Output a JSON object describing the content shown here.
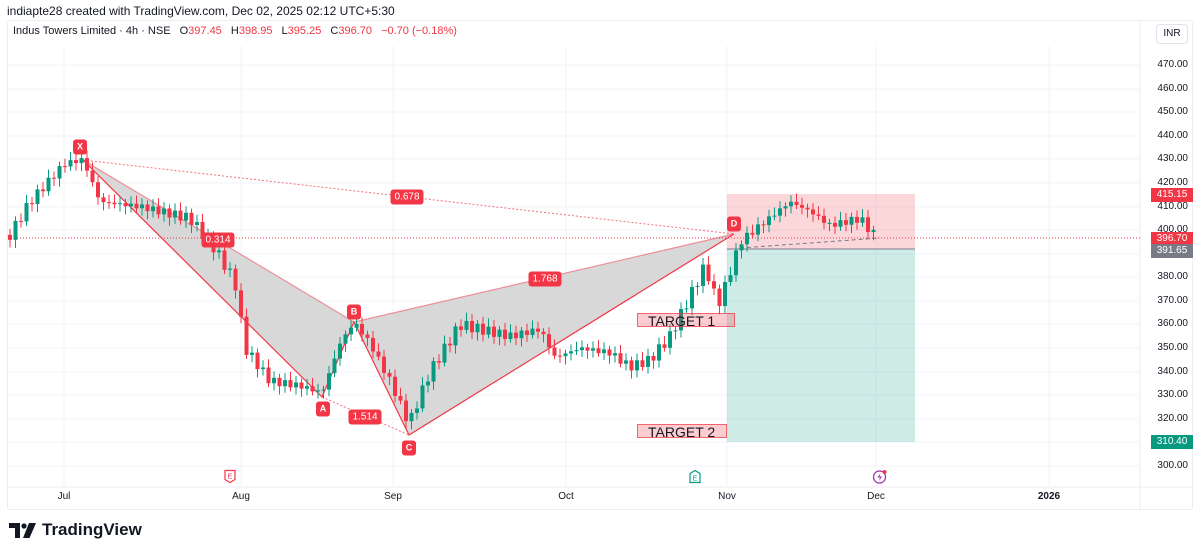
{
  "attribution": "indiapte28 created with TradingView.com, Dec 02, 2025 02:12 UTC+5:30",
  "legend": {
    "symbol": "Indus Towers Limited · 4h · NSE",
    "open_label": "O",
    "open": "397.45",
    "high_label": "H",
    "high": "398.95",
    "low_label": "L",
    "low": "395.25",
    "close_label": "C",
    "close": "396.70",
    "change": "−0.70 (−0.18%)"
  },
  "currency": "INR",
  "price_axis": {
    "ticks": [
      "470.00",
      "460.00",
      "450.00",
      "440.00",
      "430.00",
      "420.00",
      "410.00",
      "400.00",
      "380.00",
      "370.00",
      "360.00",
      "350.00",
      "340.00",
      "330.00",
      "320.00",
      "300.00"
    ],
    "tags": [
      {
        "value": "415.15",
        "color": "#f23645"
      },
      {
        "value": "396.70",
        "color": "#f23645"
      },
      {
        "value": "391.65",
        "color": "#787b86"
      },
      {
        "value": "310.40",
        "color": "#089981"
      }
    ]
  },
  "time_axis": {
    "labels": [
      "Jul",
      "Aug",
      "Sep",
      "Oct",
      "Nov",
      "Dec",
      "2026"
    ]
  },
  "pattern": {
    "points": [
      "X",
      "A",
      "B",
      "C",
      "D"
    ],
    "ratios": [
      "0.678",
      "0.314",
      "1.514",
      "1.768"
    ]
  },
  "targets": [
    "TARGET 1",
    "TARGET 2"
  ],
  "brand": "TradingView",
  "colors": {
    "up": "#089981",
    "down": "#f23645",
    "pattern_fill": "#d1d1d1",
    "stop_zone": "rgba(242,54,69,0.2)",
    "profit_zone": "rgba(8,153,129,0.2)"
  },
  "chart_data": {
    "type": "candlestick",
    "title": "Indus Towers Limited · 4h · NSE",
    "ylabel": "INR",
    "ylim": [
      297,
      478
    ],
    "x_ticks": [
      "Jul",
      "Aug",
      "Sep",
      "Oct",
      "Nov",
      "Dec",
      "2026"
    ],
    "ohlc_last": {
      "open": 397.45,
      "high": 398.95,
      "low": 395.25,
      "close": 396.7,
      "change": -0.7,
      "change_pct": -0.18
    },
    "harmonic_pattern": {
      "X": {
        "date": "early Jul",
        "price": 430
      },
      "A": {
        "date": "mid Aug",
        "price": 330
      },
      "B": {
        "date": "late Aug",
        "price": 362
      },
      "C": {
        "date": "early Sep",
        "price": 313
      },
      "D": {
        "date": "end Oct",
        "price": 398
      },
      "ratios": {
        "XA_B": 0.314,
        "XA_D": 0.678,
        "AB_C": 1.514,
        "BC_D": 1.768
      }
    },
    "position": {
      "type": "short",
      "entry": 391.65,
      "stop": 415.15,
      "target": 310.4
    },
    "annotations": [
      {
        "text": "TARGET 1",
        "price": 362
      },
      {
        "text": "TARGET 2",
        "price": 315
      }
    ],
    "last_price": 396.7,
    "approx_closes": [
      {
        "period": "late Jun",
        "price": 398
      },
      {
        "period": "early Jul",
        "price": 428
      },
      {
        "period": "mid Jul",
        "price": 410
      },
      {
        "period": "late Jul",
        "price": 392
      },
      {
        "period": "early Aug",
        "price": 350
      },
      {
        "period": "mid Aug",
        "price": 335
      },
      {
        "period": "late Aug",
        "price": 360
      },
      {
        "period": "early Sep",
        "price": 318
      },
      {
        "period": "mid Sep",
        "price": 362
      },
      {
        "period": "late Sep",
        "price": 348
      },
      {
        "period": "early Oct",
        "price": 355
      },
      {
        "period": "mid Oct",
        "price": 342
      },
      {
        "period": "late Oct",
        "price": 385
      },
      {
        "period": "early Nov",
        "price": 402
      },
      {
        "period": "mid Nov",
        "price": 412
      },
      {
        "period": "late Nov",
        "price": 404
      },
      {
        "period": "early Dec",
        "price": 396.7
      }
    ]
  }
}
